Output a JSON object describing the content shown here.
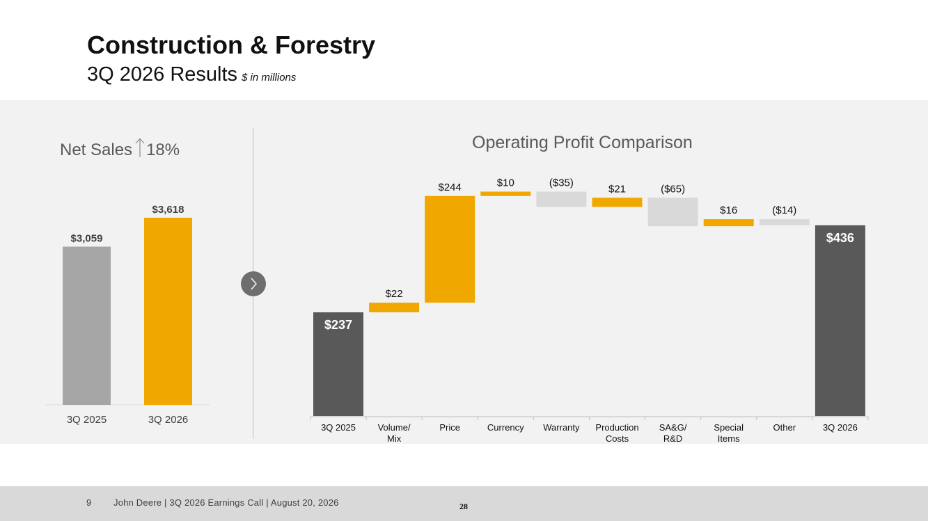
{
  "header": {
    "title": "Construction & Forestry",
    "subtitle": "3Q 2026 Results",
    "units": "$ in millions"
  },
  "net_sales": {
    "title_prefix": "Net Sales",
    "change_icon": "arrow-up-icon",
    "change": "18%"
  },
  "operating_profit": {
    "title": "Operating Profit Comparison"
  },
  "footer": {
    "page": "9",
    "text": "John Deere | 3Q 2026 Earnings Call | August 20, 2026",
    "number": "28"
  },
  "colors": {
    "accent": "#f0a800",
    "dark": "#595959",
    "gray": "#a6a6a6",
    "negative": "#d9d9d9"
  },
  "chart_data": [
    {
      "type": "bar",
      "categories": [
        "3Q 2025",
        "3Q 2026"
      ],
      "values": [
        3059,
        3618
      ],
      "value_labels": [
        "$3,059",
        "$3,618"
      ],
      "ylim": [
        0,
        3618
      ]
    },
    {
      "type": "bar",
      "subtype": "waterfall",
      "categories": [
        "3Q 2025",
        "Volume/\nMix",
        "Price",
        "Currency",
        "Warranty",
        "Production\nCosts",
        "SA&G/\nR&D",
        "Special\nItems",
        "Other",
        "3Q 2026"
      ],
      "values": [
        237,
        22,
        244,
        10,
        -35,
        21,
        -65,
        16,
        -14,
        436
      ],
      "kinds": [
        "total",
        "delta",
        "delta",
        "delta",
        "delta",
        "delta",
        "delta",
        "delta",
        "delta",
        "total"
      ],
      "value_labels": [
        "$237",
        "$22",
        "$244",
        "$10",
        "($35)",
        "$21",
        "($65)",
        "$16",
        "($14)",
        "$436"
      ],
      "ylim": [
        0,
        525
      ]
    }
  ]
}
